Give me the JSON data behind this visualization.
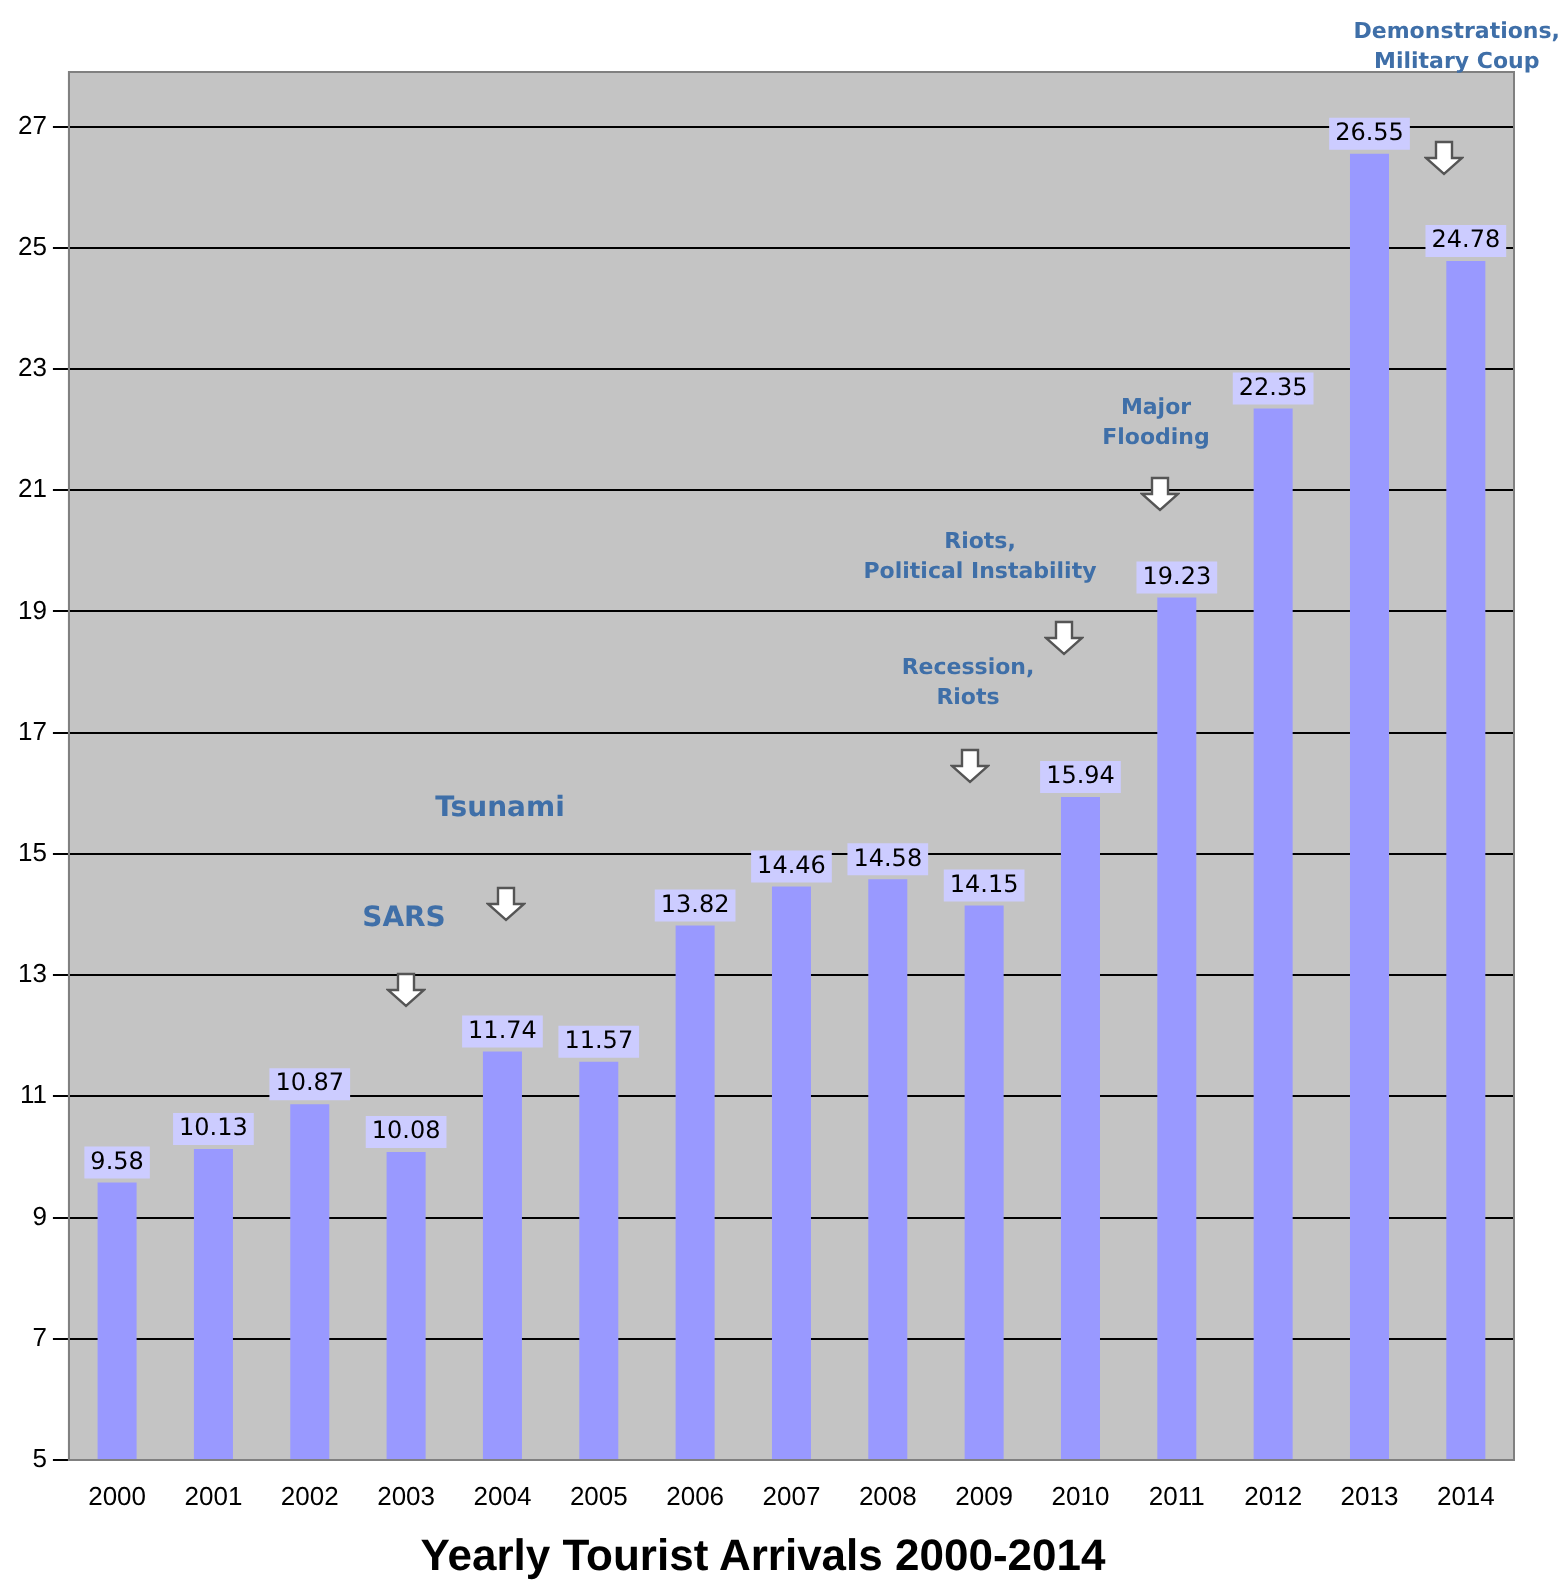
{
  "chart_data": {
    "type": "bar",
    "title": "Yearly Tourist Arrivals 2000-2014",
    "categories": [
      "2000",
      "2001",
      "2002",
      "2003",
      "2004",
      "2005",
      "2006",
      "2007",
      "2008",
      "2009",
      "2010",
      "2011",
      "2012",
      "2013",
      "2014"
    ],
    "values": [
      9.58,
      10.13,
      10.87,
      10.08,
      11.74,
      11.57,
      13.82,
      14.46,
      14.58,
      14.15,
      15.94,
      19.23,
      22.35,
      26.55,
      24.78
    ],
    "color": "#9999ff",
    "ylim": [
      5,
      27.9
    ],
    "yticks": [
      5,
      7,
      9,
      11,
      13,
      15,
      17,
      19,
      21,
      23,
      25,
      27
    ],
    "grid": "y",
    "data_labels": true,
    "legend": false,
    "annotations": [
      "SARS",
      "Tsunami",
      "Recession,\nRiots",
      "Riots,\nPolitical Instability",
      "Major\nFlooding",
      "Demonstrations,\nMilitary Coup"
    ]
  }
}
